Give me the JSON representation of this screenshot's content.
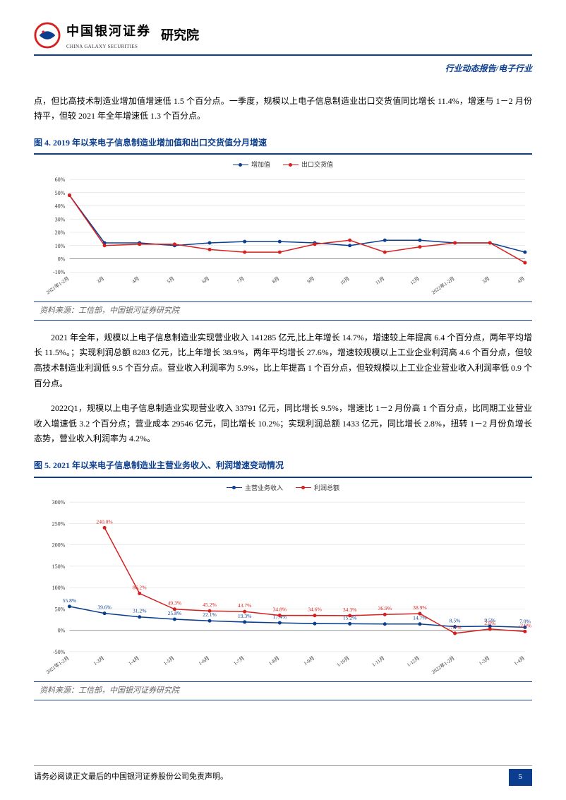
{
  "header": {
    "logo_cn": "中国银河证券",
    "logo_en": "CHINA GALAXY SECURITIES",
    "institute": "研究院",
    "right": "行业动态报告/电子行业"
  },
  "para1": "点，但比高技术制造业增加值增速低 1.5 个百分点。一季度，规模以上电子信息制造业出口交货值同比增长 11.4%，增速与 1－2 月份持平，但较 2021 年全年增速低 1.3 个百分点。",
  "fig4_title": "图 4. 2019 年以来电子信息制造业增加值和出口交货值分月增速",
  "chart4": {
    "type": "line",
    "legend": [
      {
        "label": "增加值",
        "color": "#0b3e8f"
      },
      {
        "label": "出口交货值",
        "color": "#d6201f"
      }
    ],
    "categories": [
      "2021年1-2月",
      "3月",
      "4月",
      "5月",
      "6月",
      "7月",
      "8月",
      "9月",
      "10月",
      "11月",
      "12月",
      "2022年1-2月",
      "3月",
      "4月"
    ],
    "series1": [
      48,
      12,
      12,
      10,
      12,
      13,
      13,
      12,
      10,
      14,
      14,
      12,
      12,
      5
    ],
    "series2": [
      48,
      10,
      11,
      11,
      7,
      5,
      5,
      11,
      14,
      5,
      9,
      12,
      12,
      -3
    ],
    "ylim": [
      -10,
      60
    ],
    "ytick_step": 10,
    "grid_color": "#d9d9d9",
    "colors": {
      "s1": "#0b3e8f",
      "s2": "#d6201f"
    },
    "line_width": 1.5,
    "axis_fontsize": 8
  },
  "source": "资料来源：工信部，中国银河证券研究院",
  "para2": "2021 年全年，规模以上电子信息制造业实现营业收入 141285 亿元,比上年增长 14.7%，增速较上年提高 6.4 个百分点，两年平均增长 11.5%。；实现利润总额 8283 亿元，比上年增长 38.9%，两年平均增长 27.6%，增速较规模以上工业企业利润高 4.6 个百分点，但较高技术制造业利润低 9.5 个百分点。营业收入利润率为 5.9%，比上年提高 1 个百分点，但较规模以上工业企业营业收入利润率低 0.9 个百分点。",
  "para3": "2022Q1，规模以上电子信息制造业实现营业收入 33791 亿元，同比增长 9.5%，增速比 1－2 月份高 1 个百分点，比同期工业营业收入增速低 3.2 个百分点；营业成本 29546 亿元，同比增长 10.2%；实现利润总额 1433 亿元，同比增长 2.8%，扭转 1－2 月份负增长态势，营业收入利润率为 4.2%。",
  "fig5_title": "图 5. 2021 年以来电子信息制造业主营业务收入、利润增速变动情况",
  "chart5": {
    "type": "line",
    "legend": [
      {
        "label": "主营业务收入",
        "color": "#0b3e8f"
      },
      {
        "label": "利润总额",
        "color": "#d6201f"
      }
    ],
    "categories": [
      "2021年1-2月",
      "1-3月",
      "1-4月",
      "1-5月",
      "1-6月",
      "1-7月",
      "1-8月",
      "1-9月",
      "1-10月",
      "1-11月",
      "1-12月",
      "2022年1-2月",
      "1-3月",
      "1-4月"
    ],
    "series1": [
      55.8,
      39.6,
      31.2,
      25.8,
      22.1,
      19.3,
      17.4,
      15.6,
      15.2,
      14.7,
      14.7,
      8.5,
      9.5,
      7.0
    ],
    "series2": [
      null,
      240.0,
      86.2,
      49.3,
      45.2,
      43.7,
      34.8,
      34.6,
      34.3,
      36.9,
      38.9,
      -7.1,
      2.8,
      -2.9
    ],
    "labels1": [
      "55.8%",
      "39.6%",
      "31.2%",
      "25.8%",
      "22.1%",
      "19.3%",
      "17.4%",
      "",
      "15.2%",
      "",
      "14.7%",
      "8.5%",
      "9.5%",
      "7.0%"
    ],
    "labels2": [
      "",
      "240.0%",
      "86.2%",
      "49.3%",
      "45.2%",
      "43.7%",
      "34.8%",
      "34.6%",
      "34.3%",
      "36.9%",
      "38.9%",
      "-7.1%",
      "2.8%",
      "-2.9%"
    ],
    "ylim": [
      -50,
      300
    ],
    "ytick_step": 50,
    "grid_color": "#d9d9d9",
    "colors": {
      "s1": "#0b3e8f",
      "s2": "#d6201f"
    },
    "line_width": 1.5,
    "axis_fontsize": 8
  },
  "footer": {
    "text": "请务必阅读正文最后的中国银河证券股份公司免责声明。",
    "page": "5"
  }
}
